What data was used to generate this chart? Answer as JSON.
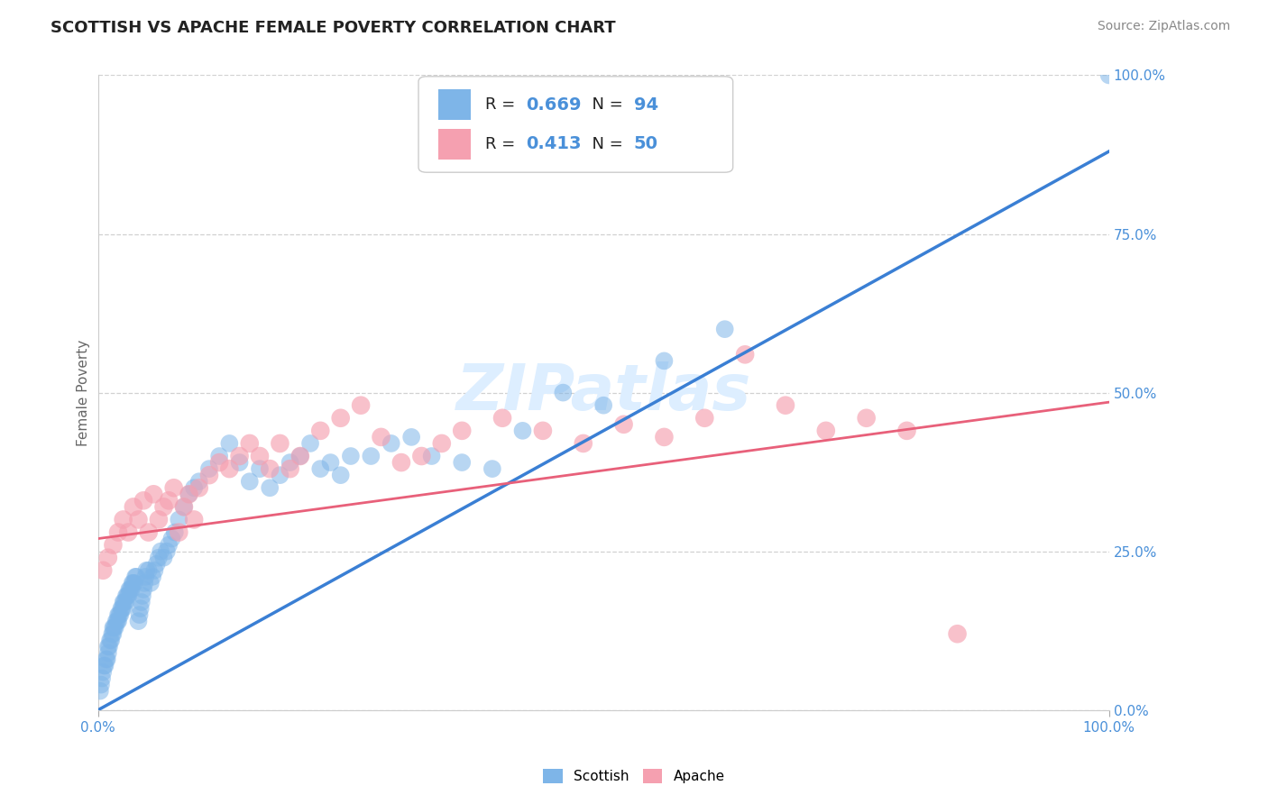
{
  "title": "SCOTTISH VS APACHE FEMALE POVERTY CORRELATION CHART",
  "source_text": "Source: ZipAtlas.com",
  "ylabel": "Female Poverty",
  "xlim": [
    0,
    1
  ],
  "ylim": [
    0,
    1
  ],
  "ytick_positions": [
    0.0,
    0.25,
    0.5,
    0.75,
    1.0
  ],
  "ytick_labels": [
    "0.0%",
    "25.0%",
    "50.0%",
    "75.0%",
    "100.0%"
  ],
  "scottish_color": "#7EB5E8",
  "apache_color": "#F5A0B0",
  "scottish_line_color": "#3A7FD4",
  "apache_line_color": "#E8607A",
  "legend_color": "#4A90D9",
  "scottish_R": 0.669,
  "scottish_N": 94,
  "apache_R": 0.413,
  "apache_N": 50,
  "blue_line_x0": 0.0,
  "blue_line_y0": 0.0,
  "blue_line_x1": 1.0,
  "blue_line_y1": 0.88,
  "pink_line_x0": 0.0,
  "pink_line_y0": 0.27,
  "pink_line_x1": 1.0,
  "pink_line_y1": 0.485,
  "scottish_x": [
    0.002,
    0.003,
    0.004,
    0.005,
    0.006,
    0.007,
    0.008,
    0.009,
    0.01,
    0.01,
    0.011,
    0.012,
    0.013,
    0.014,
    0.015,
    0.015,
    0.016,
    0.017,
    0.018,
    0.019,
    0.02,
    0.02,
    0.021,
    0.022,
    0.023,
    0.024,
    0.025,
    0.025,
    0.026,
    0.027,
    0.028,
    0.029,
    0.03,
    0.031,
    0.032,
    0.033,
    0.034,
    0.035,
    0.036,
    0.037,
    0.038,
    0.04,
    0.041,
    0.042,
    0.043,
    0.044,
    0.045,
    0.046,
    0.047,
    0.048,
    0.05,
    0.052,
    0.054,
    0.056,
    0.058,
    0.06,
    0.062,
    0.065,
    0.068,
    0.07,
    0.073,
    0.076,
    0.08,
    0.085,
    0.09,
    0.095,
    0.1,
    0.11,
    0.12,
    0.13,
    0.14,
    0.15,
    0.16,
    0.17,
    0.18,
    0.19,
    0.2,
    0.21,
    0.22,
    0.23,
    0.24,
    0.25,
    0.27,
    0.29,
    0.31,
    0.33,
    0.36,
    0.39,
    0.42,
    0.46,
    0.5,
    0.56,
    0.62,
    1.0
  ],
  "scottish_y": [
    0.03,
    0.04,
    0.05,
    0.06,
    0.07,
    0.07,
    0.08,
    0.08,
    0.09,
    0.1,
    0.1,
    0.11,
    0.11,
    0.12,
    0.12,
    0.13,
    0.13,
    0.13,
    0.14,
    0.14,
    0.14,
    0.15,
    0.15,
    0.15,
    0.16,
    0.16,
    0.16,
    0.17,
    0.17,
    0.17,
    0.18,
    0.18,
    0.18,
    0.19,
    0.19,
    0.19,
    0.2,
    0.2,
    0.2,
    0.21,
    0.21,
    0.14,
    0.15,
    0.16,
    0.17,
    0.18,
    0.19,
    0.2,
    0.21,
    0.22,
    0.22,
    0.2,
    0.21,
    0.22,
    0.23,
    0.24,
    0.25,
    0.24,
    0.25,
    0.26,
    0.27,
    0.28,
    0.3,
    0.32,
    0.34,
    0.35,
    0.36,
    0.38,
    0.4,
    0.42,
    0.39,
    0.36,
    0.38,
    0.35,
    0.37,
    0.39,
    0.4,
    0.42,
    0.38,
    0.39,
    0.37,
    0.4,
    0.4,
    0.42,
    0.43,
    0.4,
    0.39,
    0.38,
    0.44,
    0.5,
    0.48,
    0.55,
    0.6,
    1.0
  ],
  "apache_x": [
    0.005,
    0.01,
    0.015,
    0.02,
    0.025,
    0.03,
    0.035,
    0.04,
    0.045,
    0.05,
    0.055,
    0.06,
    0.065,
    0.07,
    0.075,
    0.08,
    0.085,
    0.09,
    0.095,
    0.1,
    0.11,
    0.12,
    0.13,
    0.14,
    0.15,
    0.16,
    0.17,
    0.18,
    0.19,
    0.2,
    0.22,
    0.24,
    0.26,
    0.28,
    0.3,
    0.32,
    0.34,
    0.36,
    0.4,
    0.44,
    0.48,
    0.52,
    0.56,
    0.6,
    0.64,
    0.68,
    0.72,
    0.76,
    0.8,
    0.85
  ],
  "apache_y": [
    0.22,
    0.24,
    0.26,
    0.28,
    0.3,
    0.28,
    0.32,
    0.3,
    0.33,
    0.28,
    0.34,
    0.3,
    0.32,
    0.33,
    0.35,
    0.28,
    0.32,
    0.34,
    0.3,
    0.35,
    0.37,
    0.39,
    0.38,
    0.4,
    0.42,
    0.4,
    0.38,
    0.42,
    0.38,
    0.4,
    0.44,
    0.46,
    0.48,
    0.43,
    0.39,
    0.4,
    0.42,
    0.44,
    0.46,
    0.44,
    0.42,
    0.45,
    0.43,
    0.46,
    0.56,
    0.48,
    0.44,
    0.46,
    0.44,
    0.12
  ],
  "watermark": "ZIPatlas",
  "watermark_color": "#DDEEFF",
  "watermark_fontsize": 52,
  "title_fontsize": 13,
  "source_fontsize": 10,
  "axis_label_fontsize": 11,
  "tick_fontsize": 11,
  "background_color": "#FFFFFF",
  "grid_color": "#CCCCCC"
}
